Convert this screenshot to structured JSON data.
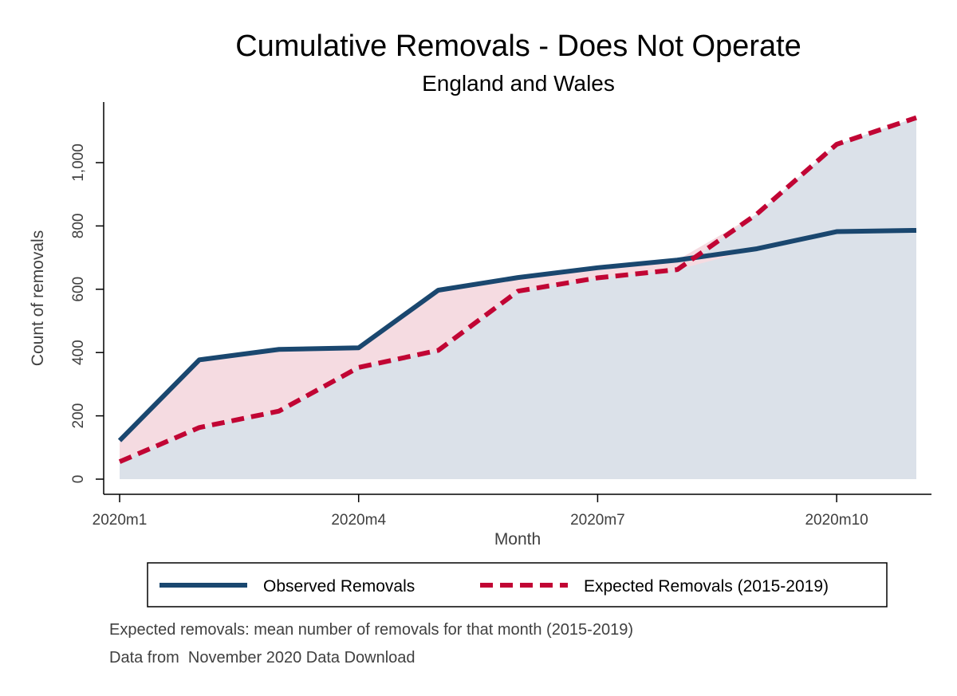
{
  "chart_data": {
    "type": "line",
    "title": "Cumulative Removals - Does Not Operate",
    "subtitle": "England and Wales",
    "xlabel": "Month",
    "ylabel": "Count of removals",
    "x": [
      "2020m1",
      "2020m2",
      "2020m3",
      "2020m4",
      "2020m5",
      "2020m6",
      "2020m7",
      "2020m8",
      "2020m9",
      "2020m10",
      "2020m11"
    ],
    "x_tick_labels": [
      "2020m1",
      "2020m4",
      "2020m7",
      "2020m10"
    ],
    "y_tick_labels": [
      "0",
      "200",
      "400",
      "600",
      "800",
      "1,000"
    ],
    "y_ticks": [
      0,
      200,
      400,
      600,
      800,
      1000
    ],
    "ylim": [
      0,
      1150
    ],
    "grid": false,
    "legend_position": "bottom",
    "series": [
      {
        "name": "Observed Removals",
        "color": "#1a476f",
        "style": "solid",
        "values": [
          122,
          377,
          410,
          415,
          597,
          637,
          668,
          692,
          728,
          782,
          786
        ]
      },
      {
        "name": "Expected Removals (2015-2019)",
        "color": "#c10534",
        "style": "dashed",
        "values": [
          55,
          163,
          215,
          353,
          407,
          594,
          636,
          662,
          838,
          1058,
          1142
        ]
      }
    ],
    "fill_colors": {
      "below": "#dbe1e9",
      "between": "#f5dbe1"
    },
    "notes": [
      "Expected removals: mean number of removals for that month (2015-2019)",
      "Data from  November 2020 Data Download"
    ]
  }
}
